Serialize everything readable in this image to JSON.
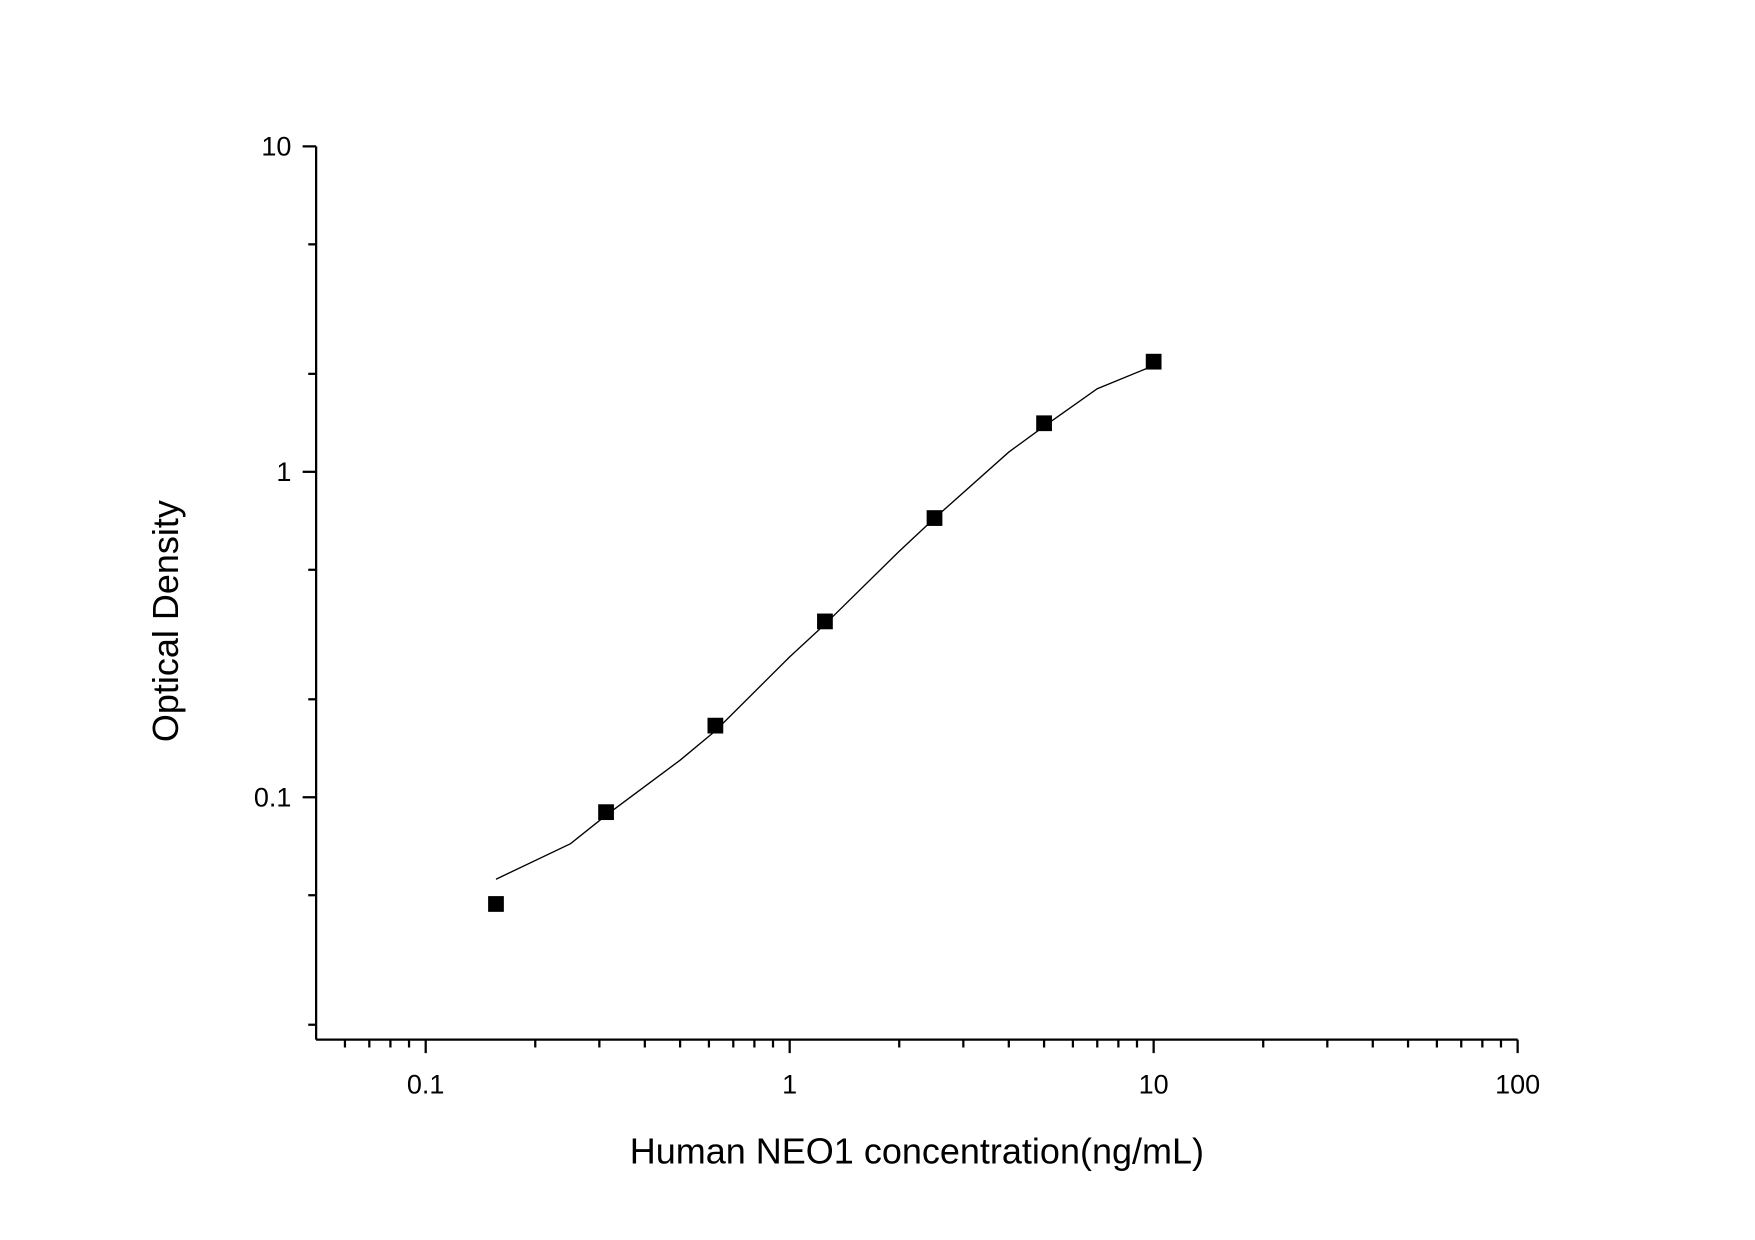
{
  "chart_data": {
    "type": "scatter",
    "x_label": "Human NEO1 concentration(ng/mL)",
    "y_label": "Optical Density",
    "xscale": "log",
    "yscale": "log",
    "xlim": [
      0.05,
      100
    ],
    "ylim": [
      0.018,
      10
    ],
    "xticks": [
      0.1,
      1,
      10,
      100
    ],
    "yticks": [
      0.1,
      1,
      10
    ],
    "xminorticks": [
      0.06,
      0.07,
      0.08,
      0.09,
      0.2,
      0.3,
      0.4,
      0.5,
      0.6,
      0.7,
      0.8,
      0.9,
      2,
      3,
      4,
      5,
      6,
      7,
      8,
      9,
      20,
      30,
      40,
      50,
      60,
      70,
      80,
      90
    ],
    "yminorticks": [
      0.02,
      0.05,
      0.2,
      0.5,
      2,
      5
    ],
    "series": [
      {
        "style": "markers",
        "marker": "square",
        "color": "#000000",
        "x": [
          0.156,
          0.313,
          0.625,
          1.25,
          2.5,
          5,
          10
        ],
        "values": [
          0.047,
          0.09,
          0.166,
          0.347,
          0.721,
          1.41,
          2.18
        ]
      },
      {
        "style": "line",
        "color": "#000000",
        "x": [
          0.156,
          0.25,
          0.313,
          0.5,
          0.625,
          1,
          1.25,
          2,
          2.5,
          4,
          5,
          7,
          10
        ],
        "values": [
          0.056,
          0.072,
          0.088,
          0.13,
          0.16,
          0.27,
          0.34,
          0.57,
          0.72,
          1.15,
          1.38,
          1.8,
          2.12
        ]
      }
    ]
  }
}
